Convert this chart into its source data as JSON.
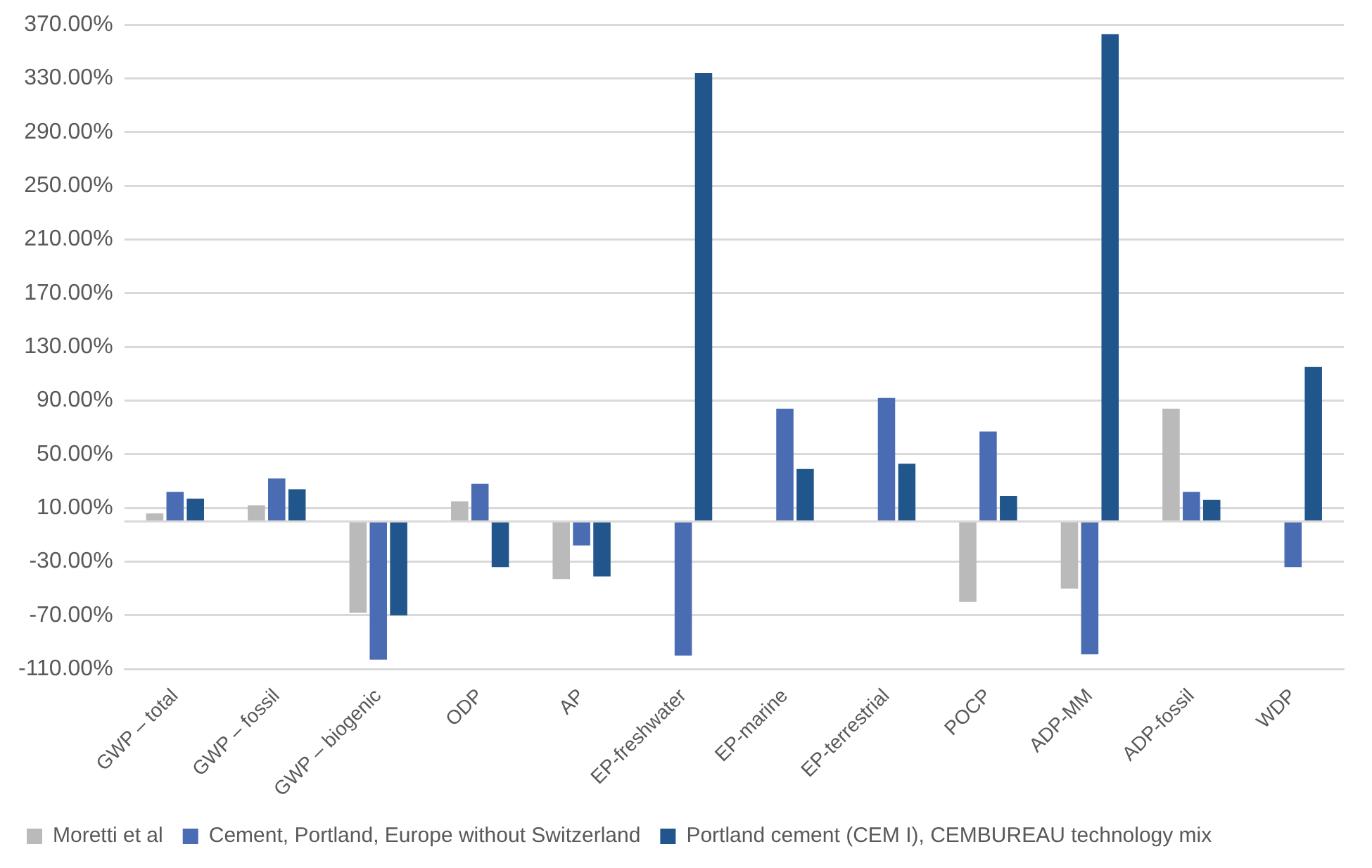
{
  "chart_data": {
    "type": "bar",
    "categories": [
      "GWP – total",
      "GWP – fossil",
      "GWP – biogenic",
      "ODP",
      "AP",
      "EP-freshwater",
      "EP-marine",
      "EP-terrestrial",
      "POCP",
      "ADP-MM",
      "ADP-fossil",
      "WDP"
    ],
    "series": [
      {
        "name": "Moretti et al",
        "color": "#bababa",
        "values": [
          6,
          12,
          -68,
          15,
          -43,
          null,
          null,
          null,
          -60,
          -50,
          84,
          null
        ]
      },
      {
        "name": "Cement, Portland, Europe without Switzerland",
        "color": "#4a6cb3",
        "values": [
          22,
          32,
          -103,
          28,
          -18,
          -100,
          84,
          92,
          67,
          -99,
          22,
          -34
        ]
      },
      {
        "name": "Portland cement (CEM I), CEMBUREAU technology mix",
        "color": "#20568c",
        "values": [
          17,
          24,
          -70,
          -34,
          -41,
          334,
          39,
          43,
          19,
          363,
          16,
          115
        ]
      }
    ],
    "ylim": [
      -110,
      370
    ],
    "yticks": [
      {
        "value": -110,
        "label": "-110.00%"
      },
      {
        "value": -70,
        "label": "-70.00%"
      },
      {
        "value": -30,
        "label": "-30.00%"
      },
      {
        "value": 10,
        "label": "10.00%"
      },
      {
        "value": 50,
        "label": "50.00%"
      },
      {
        "value": 90,
        "label": "90.00%"
      },
      {
        "value": 130,
        "label": "130.00%"
      },
      {
        "value": 170,
        "label": "170.00%"
      },
      {
        "value": 210,
        "label": "210.00%"
      },
      {
        "value": 250,
        "label": "250.00%"
      },
      {
        "value": 290,
        "label": "290.00%"
      },
      {
        "value": 330,
        "label": "330.00%"
      },
      {
        "value": 370,
        "label": "370.00%"
      }
    ],
    "grid": "y",
    "legend": "bottom"
  }
}
